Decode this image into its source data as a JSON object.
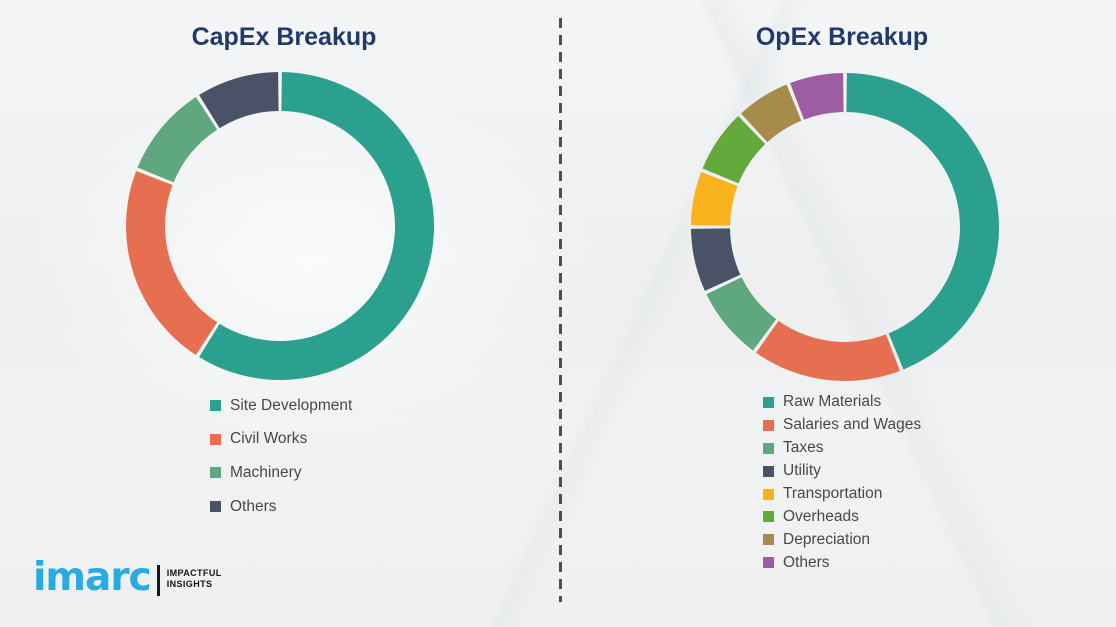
{
  "page": {
    "background_color": "#eff1f2",
    "divider_color": "#4f4f4f",
    "title_color": "#203a6a",
    "legend_text_color": "#484848"
  },
  "chart_data": [
    {
      "type": "pie",
      "subtype": "donut",
      "title": "CapEx Breakup",
      "labels": [
        "Site Development",
        "Civil Works",
        "Machinery",
        "Others"
      ],
      "values": [
        59,
        22,
        10,
        9
      ],
      "units": "percent-estimated-from-arc-angles",
      "colors": [
        "#2BA08F",
        "#E76F51",
        "#5FA77E",
        "#4A5268"
      ],
      "start_angle_deg": 0,
      "direction": "clockwise",
      "legend_position": "below-chart-left",
      "data_labels_shown": false
    },
    {
      "type": "pie",
      "subtype": "donut",
      "title": "OpEx Breakup",
      "labels": [
        "Raw Materials",
        "Salaries and Wages",
        "Taxes",
        "Utility",
        "Transportation",
        "Overheads",
        "Depreciation",
        "Others"
      ],
      "values": [
        44,
        16,
        8,
        7,
        6,
        7,
        6,
        6
      ],
      "units": "percent-estimated-from-arc-angles",
      "colors": [
        "#2BA08F",
        "#E76F51",
        "#5FA77E",
        "#4A5268",
        "#F9B11C",
        "#64A93C",
        "#A78B4B",
        "#9E5CA2"
      ],
      "start_angle_deg": 0,
      "direction": "clockwise",
      "legend_position": "below-chart-left",
      "data_labels_shown": false
    }
  ],
  "branding": {
    "logo_text": "imarc",
    "tagline": "IMPACTFUL\nINSIGHTS",
    "logo_color": "#29abe2"
  }
}
